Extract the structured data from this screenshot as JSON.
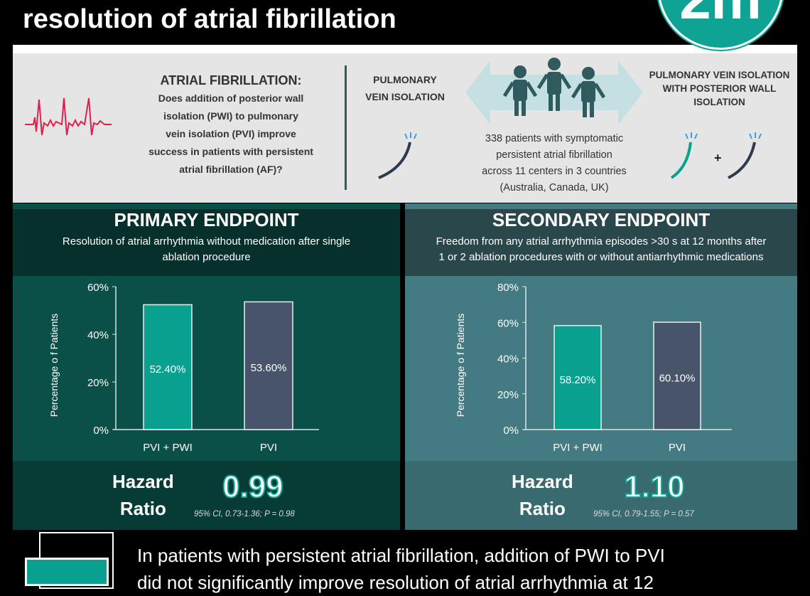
{
  "header": {
    "title": "resolution of atrial fibrillation",
    "logo_text": "2m"
  },
  "intro": {
    "question_title": "ATRIAL FIBRILLATION:",
    "question_lines": [
      "Does addition of posterior wall",
      "isolation (PWI) to pulmonary",
      "vein isolation (PVI) improve",
      "success in patients with persistent",
      "atrial fibrillation (AF)?"
    ],
    "arm_left": [
      "PULMONARY",
      "VEIN ISOLATION"
    ],
    "arm_right": [
      "PULMONARY VEIN ISOLATION",
      "WITH POSTERIOR WALL",
      "ISOLATION"
    ],
    "study_lines": [
      "338 patients with symptomatic",
      "persistent atrial fibrillation",
      "across 11 centers in 3 countries",
      "(Australia, Canada, UK)"
    ],
    "plus": "+"
  },
  "colors": {
    "teal": "#0aa090",
    "slate": "#47546a",
    "primary_bg": "#0a4f48",
    "secondary_bg": "#447a82",
    "ecg": "#e0204a"
  },
  "primary": {
    "title": "PRIMARY ENDPOINT",
    "subtitle_lines": [
      "Resolution of atrial arrhythmia without medication after single",
      "ablation procedure"
    ],
    "hr_label": [
      "Hazard",
      "Ratio"
    ],
    "hr_value": "0.99",
    "ci": "95% CI, 0.73-1.36; P = 0.98"
  },
  "secondary": {
    "title": "SECONDARY ENDPOINT",
    "subtitle_lines": [
      "Freedom from any atrial arrhythmia episodes >30 s at 12 months after",
      "1 or 2 ablation procedures with or without antiarrhythmic medications"
    ],
    "hr_label": [
      "Hazard",
      "Ratio"
    ],
    "hr_value": "1.10",
    "ci": "95% CI, 0.79-1.55; P = 0.57"
  },
  "chart_data": [
    {
      "type": "bar",
      "categories": [
        "PVI + PWI",
        "PVI"
      ],
      "values": [
        52.4,
        53.6
      ],
      "data_labels": [
        "52.40%",
        "53.60%"
      ],
      "ylabel": "Percentage o f Patients",
      "ylim": [
        0,
        60
      ],
      "yticks": [
        "0%",
        "20%",
        "40%",
        "60%"
      ],
      "grid": false
    },
    {
      "type": "bar",
      "categories": [
        "PVI + PWI",
        "PVI"
      ],
      "values": [
        58.2,
        60.1
      ],
      "data_labels": [
        "58.20%",
        "60.10%"
      ],
      "ylabel": "Percentage o f Patients",
      "ylim": [
        0,
        80
      ],
      "yticks": [
        "0%",
        "20%",
        "40%",
        "60%",
        "80%"
      ],
      "grid": false
    }
  ],
  "conclusion": [
    "In patients with persistent atrial fibrillation, addition of PWI to PVI",
    "did not significantly improve resolution of atrial arrhythmia at 12"
  ]
}
